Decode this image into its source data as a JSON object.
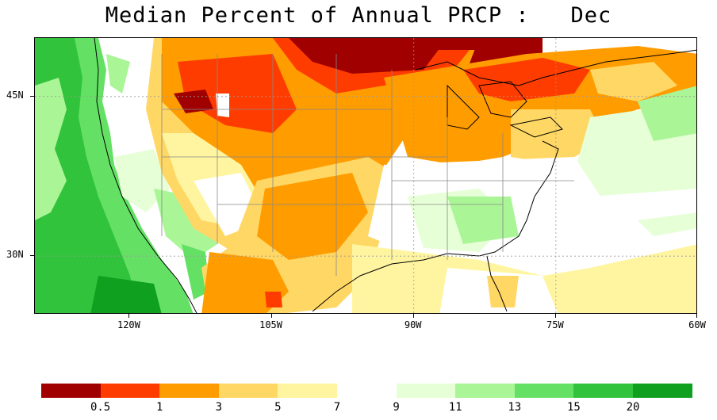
{
  "title": "Median Percent of Annual PRCP :   Dec",
  "map": {
    "lat_labels": [
      {
        "text": "45N",
        "lat": 45
      },
      {
        "text": "30N",
        "lat": 30
      }
    ],
    "lon_labels": [
      {
        "text": "120W",
        "lon": -120
      },
      {
        "text": "105W",
        "lon": -105
      },
      {
        "text": "90W",
        "lon": -90
      },
      {
        "text": "75W",
        "lon": -75
      },
      {
        "text": "60W",
        "lon": -60
      }
    ],
    "extent": {
      "lon_min": -130,
      "lon_max": -60,
      "lat_min": 24.5,
      "lat_max": 50.5
    }
  },
  "colorbar": {
    "labels": [
      "0.5",
      "1",
      "3",
      "5",
      "7",
      "9",
      "11",
      "13",
      "15",
      "20"
    ],
    "colors": [
      "#a00000",
      "#ff3c00",
      "#ff9c00",
      "#ffd764",
      "#fff5a0",
      "#ffffff",
      "#e6ffd7",
      "#aaf596",
      "#64e164",
      "#32c33c",
      "#0ea01e"
    ]
  },
  "colors": {
    "very_dry": "#a00000",
    "dry": "#ff3c00",
    "orange": "#ff9c00",
    "gold": "#ffd764",
    "pale": "#fff5a0",
    "neutral": "#ffffff",
    "light_green": "#e6ffd7",
    "green1": "#aaf596",
    "green2": "#64e164",
    "green3": "#32c33c",
    "green4": "#0ea01e"
  }
}
